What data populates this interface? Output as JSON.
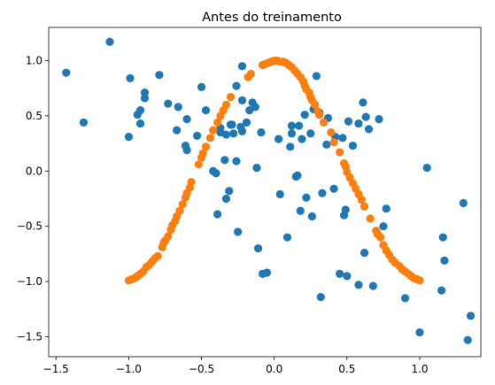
{
  "chart_data": {
    "type": "scatter",
    "title": "Antes do treinamento",
    "xlabel": "",
    "ylabel": "",
    "xlim": [
      -1.55,
      1.42
    ],
    "ylim": [
      -1.68,
      1.3
    ],
    "xticks": [
      -1.5,
      -1.0,
      -0.5,
      0.0,
      0.5,
      1.0
    ],
    "xtick_labels": [
      "−1.5",
      "−1.0",
      "−0.5",
      "0.0",
      "0.5",
      "1.0"
    ],
    "yticks": [
      -1.5,
      -1.0,
      -0.5,
      0.0,
      0.5,
      1.0
    ],
    "ytick_labels": [
      "−1.5",
      "−1.0",
      "−0.5",
      "0.0",
      "0.5",
      "1.0"
    ],
    "grid": false,
    "colors": {
      "blue": "#1f77b4",
      "orange": "#ff7f0e"
    },
    "series": [
      {
        "color": "#1f77b4",
        "points": [
          [
            -1.43,
            0.89
          ],
          [
            -1.31,
            0.44
          ],
          [
            -1.13,
            1.17
          ],
          [
            -1.0,
            0.31
          ],
          [
            -0.99,
            0.84
          ],
          [
            -0.94,
            0.51
          ],
          [
            -0.92,
            0.55
          ],
          [
            -0.92,
            0.43
          ],
          [
            -0.89,
            0.66
          ],
          [
            -0.89,
            0.71
          ],
          [
            -0.79,
            0.87
          ],
          [
            -0.73,
            0.61
          ],
          [
            -0.67,
            0.37
          ],
          [
            -0.66,
            0.58
          ],
          [
            -0.61,
            0.23
          ],
          [
            -0.6,
            0.47
          ],
          [
            -0.6,
            0.19
          ],
          [
            -0.53,
            0.32
          ],
          [
            -0.5,
            0.76
          ],
          [
            -0.47,
            0.55
          ],
          [
            -0.42,
            0.0
          ],
          [
            -0.4,
            -0.02
          ],
          [
            -0.39,
            -0.39
          ],
          [
            -0.37,
            0.39
          ],
          [
            -0.37,
            0.35
          ],
          [
            -0.34,
            0.1
          ],
          [
            -0.33,
            0.33
          ],
          [
            -0.33,
            -0.25
          ],
          [
            -0.31,
            -0.18
          ],
          [
            -0.3,
            0.42
          ],
          [
            -0.29,
            0.42
          ],
          [
            -0.28,
            0.34
          ],
          [
            -0.26,
            0.77
          ],
          [
            -0.26,
            0.09
          ],
          [
            -0.25,
            -0.55
          ],
          [
            -0.23,
            0.4
          ],
          [
            -0.22,
            0.95
          ],
          [
            -0.22,
            0.64
          ],
          [
            -0.22,
            0.36
          ],
          [
            -0.19,
            0.44
          ],
          [
            -0.17,
            0.55
          ],
          [
            -0.15,
            0.62
          ],
          [
            -0.13,
            0.58
          ],
          [
            -0.12,
            0.03
          ],
          [
            -0.11,
            -0.7
          ],
          [
            -0.09,
            0.35
          ],
          [
            -0.08,
            -0.93
          ],
          [
            -0.05,
            -0.92
          ],
          [
            0.03,
            0.29
          ],
          [
            0.04,
            -0.21
          ],
          [
            0.09,
            -0.6
          ],
          [
            0.11,
            0.22
          ],
          [
            0.12,
            0.34
          ],
          [
            0.12,
            0.41
          ],
          [
            0.15,
            -0.05
          ],
          [
            0.16,
            -0.04
          ],
          [
            0.17,
            0.41
          ],
          [
            0.18,
            -0.36
          ],
          [
            0.19,
            0.29
          ],
          [
            0.21,
            0.51
          ],
          [
            0.22,
            -0.24
          ],
          [
            0.25,
            0.34
          ],
          [
            0.26,
            -0.41
          ],
          [
            0.27,
            0.56
          ],
          [
            0.29,
            0.86
          ],
          [
            0.31,
            0.53
          ],
          [
            0.32,
            -1.14
          ],
          [
            0.33,
            -0.2
          ],
          [
            0.36,
            0.24
          ],
          [
            0.37,
            0.48
          ],
          [
            0.41,
            -0.16
          ],
          [
            0.42,
            0.31
          ],
          [
            0.45,
            -0.93
          ],
          [
            0.47,
            0.3
          ],
          [
            0.48,
            -0.4
          ],
          [
            0.49,
            -0.35
          ],
          [
            0.5,
            -0.95
          ],
          [
            0.51,
            0.45
          ],
          [
            0.54,
            0.23
          ],
          [
            0.58,
            0.43
          ],
          [
            0.58,
            -1.03
          ],
          [
            0.61,
            0.62
          ],
          [
            0.62,
            -0.74
          ],
          [
            0.63,
            0.49
          ],
          [
            0.65,
            0.38
          ],
          [
            0.68,
            -1.04
          ],
          [
            0.72,
            0.47
          ],
          [
            0.75,
            -0.5
          ],
          [
            0.77,
            -0.34
          ],
          [
            0.9,
            -1.15
          ],
          [
            1.0,
            -1.46
          ],
          [
            1.05,
            0.03
          ],
          [
            1.15,
            -1.08
          ],
          [
            1.16,
            -0.6
          ],
          [
            1.17,
            -0.81
          ],
          [
            1.3,
            -0.29
          ],
          [
            1.33,
            -1.53
          ],
          [
            1.35,
            -1.31
          ]
        ]
      },
      {
        "color": "#ff7f0e",
        "points": [
          [
            -1.0,
            -0.99
          ],
          [
            -0.98,
            -0.98
          ],
          [
            -0.96,
            -0.97
          ],
          [
            -0.95,
            -0.96
          ],
          [
            -0.94,
            -0.95
          ],
          [
            -0.92,
            -0.93
          ],
          [
            -0.9,
            -0.91
          ],
          [
            -0.88,
            -0.87
          ],
          [
            -0.86,
            -0.85
          ],
          [
            -0.84,
            -0.82
          ],
          [
            -0.82,
            -0.79
          ],
          [
            -0.8,
            -0.77
          ],
          [
            -0.77,
            -0.69
          ],
          [
            -0.76,
            -0.65
          ],
          [
            -0.75,
            -0.63
          ],
          [
            -0.73,
            -0.59
          ],
          [
            -0.71,
            -0.53
          ],
          [
            -0.7,
            -0.49
          ],
          [
            -0.68,
            -0.45
          ],
          [
            -0.67,
            -0.41
          ],
          [
            -0.65,
            -0.36
          ],
          [
            -0.63,
            -0.3
          ],
          [
            -0.61,
            -0.24
          ],
          [
            -0.6,
            -0.2
          ],
          [
            -0.58,
            -0.15
          ],
          [
            -0.57,
            -0.1
          ],
          [
            -0.52,
            0.06
          ],
          [
            -0.5,
            0.12
          ],
          [
            -0.49,
            0.16
          ],
          [
            -0.47,
            0.22
          ],
          [
            -0.44,
            0.3
          ],
          [
            -0.42,
            0.37
          ],
          [
            -0.39,
            0.44
          ],
          [
            -0.37,
            0.5
          ],
          [
            -0.35,
            0.55
          ],
          [
            -0.33,
            0.6
          ],
          [
            -0.3,
            0.67
          ],
          [
            -0.18,
            0.85
          ],
          [
            -0.16,
            0.88
          ],
          [
            -0.08,
            0.96
          ],
          [
            -0.06,
            0.97
          ],
          [
            -0.04,
            0.98
          ],
          [
            -0.02,
            0.99
          ],
          [
            0.0,
            1.0
          ],
          [
            0.02,
            1.0
          ],
          [
            0.04,
            0.99
          ],
          [
            0.06,
            0.99
          ],
          [
            0.08,
            0.98
          ],
          [
            0.1,
            0.96
          ],
          [
            0.12,
            0.94
          ],
          [
            0.14,
            0.91
          ],
          [
            0.16,
            0.88
          ],
          [
            0.18,
            0.85
          ],
          [
            0.2,
            0.81
          ],
          [
            0.21,
            0.77
          ],
          [
            0.22,
            0.74
          ],
          [
            0.24,
            0.71
          ],
          [
            0.25,
            0.67
          ],
          [
            0.26,
            0.64
          ],
          [
            0.28,
            0.6
          ],
          [
            0.3,
            0.54
          ],
          [
            0.31,
            0.51
          ],
          [
            0.34,
            0.44
          ],
          [
            0.39,
            0.35
          ],
          [
            0.41,
            0.26
          ],
          [
            0.45,
            0.17
          ],
          [
            0.48,
            0.07
          ],
          [
            0.49,
            0.04
          ],
          [
            0.5,
            -0.01
          ],
          [
            0.52,
            -0.06
          ],
          [
            0.54,
            -0.11
          ],
          [
            0.56,
            -0.16
          ],
          [
            0.58,
            -0.21
          ],
          [
            0.6,
            -0.26
          ],
          [
            0.62,
            -0.32
          ],
          [
            0.66,
            -0.43
          ],
          [
            0.7,
            -0.54
          ],
          [
            0.71,
            -0.57
          ],
          [
            0.73,
            -0.6
          ],
          [
            0.75,
            -0.67
          ],
          [
            0.77,
            -0.72
          ],
          [
            0.79,
            -0.76
          ],
          [
            0.81,
            -0.8
          ],
          [
            0.83,
            -0.83
          ],
          [
            0.86,
            -0.86
          ],
          [
            0.88,
            -0.89
          ],
          [
            0.9,
            -0.91
          ],
          [
            0.92,
            -0.93
          ],
          [
            0.94,
            -0.95
          ],
          [
            0.96,
            -0.97
          ],
          [
            0.98,
            -0.98
          ],
          [
            1.0,
            -0.99
          ]
        ]
      }
    ]
  }
}
